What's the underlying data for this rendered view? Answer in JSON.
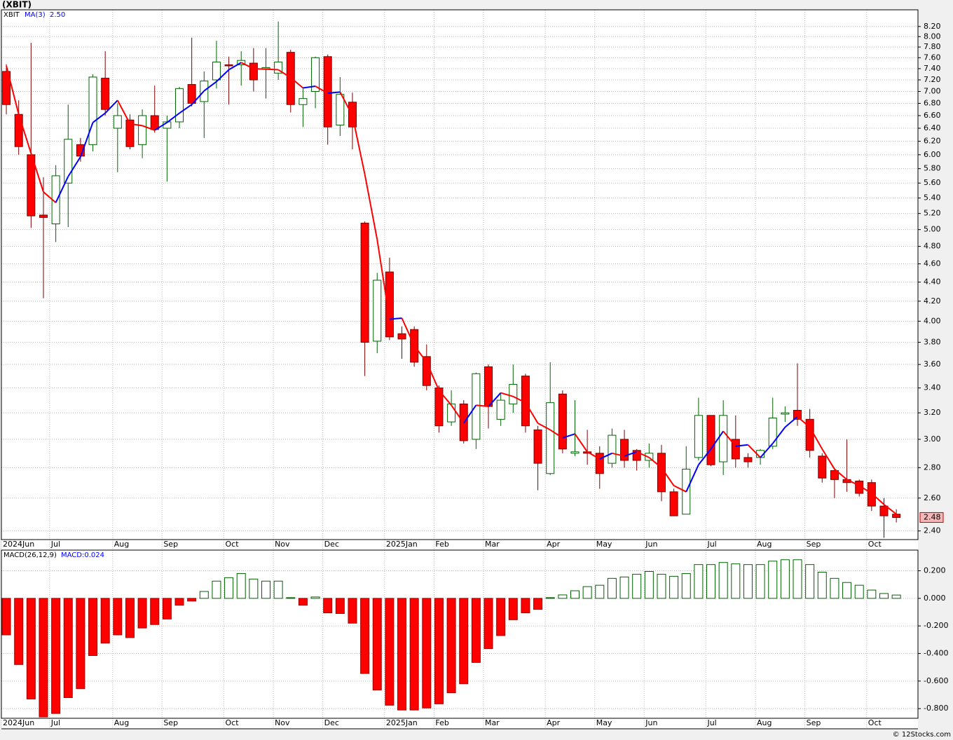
{
  "title": "(XBIT)",
  "credit": "© 12Stocks.com",
  "chart_data": [
    {
      "type": "candlestick",
      "log_scale": true,
      "grid": true,
      "ylim": [
        2.35,
        8.54
      ],
      "xlim": [
        -0.4,
        73.75
      ],
      "yticks": [
        {
          "value": 2.4,
          "label": "2.40"
        },
        {
          "value": 2.6,
          "label": "2.60"
        },
        {
          "value": 2.8,
          "label": "2.80"
        },
        {
          "value": 3,
          "label": "3.00"
        },
        {
          "value": 3.2,
          "label": "3.20"
        },
        {
          "value": 3.4,
          "label": "3.40"
        },
        {
          "value": 3.6,
          "label": "3.60"
        },
        {
          "value": 3.8,
          "label": "3.80"
        },
        {
          "value": 4,
          "label": "4.00"
        },
        {
          "value": 4.2,
          "label": "4.20"
        },
        {
          "value": 4.4,
          "label": "4.40"
        },
        {
          "value": 4.6,
          "label": "4.60"
        },
        {
          "value": 4.8,
          "label": "4.80"
        },
        {
          "value": 5,
          "label": "5.00"
        },
        {
          "value": 5.2,
          "label": "5.20"
        },
        {
          "value": 5.4,
          "label": "5.40"
        },
        {
          "value": 5.6,
          "label": "5.60"
        },
        {
          "value": 5.8,
          "label": "5.80"
        },
        {
          "value": 6,
          "label": "6.00"
        },
        {
          "value": 6.2,
          "label": "6.20"
        },
        {
          "value": 6.4,
          "label": "6.40"
        },
        {
          "value": 6.6,
          "label": "6.60"
        },
        {
          "value": 6.8,
          "label": "6.80"
        },
        {
          "value": 7,
          "label": "7.00"
        },
        {
          "value": 7.2,
          "label": "7.20"
        },
        {
          "value": 7.4,
          "label": "7.40"
        },
        {
          "value": 7.6,
          "label": "7.60"
        },
        {
          "value": 7.8,
          "label": "7.80"
        },
        {
          "value": 8,
          "label": "8.00"
        },
        {
          "value": 8.2,
          "label": "8.20"
        }
      ],
      "xticks": [
        {
          "value": -0.4,
          "label": "2024Jun"
        },
        {
          "value": 3.5,
          "label": "Jul"
        },
        {
          "value": 8.6,
          "label": "Aug"
        },
        {
          "value": 12.6,
          "label": "Sep"
        },
        {
          "value": 17.6,
          "label": "Oct"
        },
        {
          "value": 21.6,
          "label": "Nov"
        },
        {
          "value": 25.6,
          "label": "Dec"
        },
        {
          "value": 30.6,
          "label": "2025Jan"
        },
        {
          "value": 34.6,
          "label": "Feb"
        },
        {
          "value": 38.6,
          "label": "Mar"
        },
        {
          "value": 43.6,
          "label": "Apr"
        },
        {
          "value": 47.6,
          "label": "May"
        },
        {
          "value": 51.6,
          "label": "Jun"
        },
        {
          "value": 56.6,
          "label": "Jul"
        },
        {
          "value": 60.6,
          "label": "Aug"
        },
        {
          "value": 64.6,
          "label": "Sep"
        },
        {
          "value": 69.6,
          "label": "Oct"
        }
      ],
      "series": [
        {
          "name": "XBIT",
          "up_color": "#006400",
          "down_color": "#ff0000",
          "open": [
            7.35,
            6.62,
            6.0,
            5.18,
            5.07,
            5.6,
            6.15,
            6.15,
            7.23,
            6.4,
            6.53,
            6.15,
            6.6,
            6.4,
            6.5,
            7.12,
            6.83,
            7.2,
            7.47,
            7.47,
            7.5,
            7.4,
            7.32,
            7.7,
            6.78,
            7.0,
            7.62,
            6.45,
            6.82,
            5.08,
            3.81,
            4.51,
            3.88,
            3.92,
            3.67,
            3.4,
            3.13,
            3.27,
            3.0,
            3.58,
            3.15,
            3.27,
            3.5,
            3.07,
            2.76,
            3.35,
            2.9,
            2.91,
            2.9,
            2.83,
            3.0,
            2.92,
            2.85,
            2.9,
            2.64,
            2.5,
            2.87,
            3.18,
            2.84,
            3.0,
            2.87,
            2.87,
            2.95,
            3.19,
            3.22,
            3.15,
            2.88,
            2.78,
            2.72,
            2.71,
            2.7,
            2.55,
            2.5
          ],
          "high": [
            7.48,
            6.85,
            7.88,
            5.68,
            5.85,
            6.78,
            6.25,
            7.3,
            7.72,
            6.8,
            6.62,
            6.7,
            7.1,
            6.6,
            7.08,
            7.98,
            7.35,
            7.92,
            7.62,
            7.72,
            7.78,
            7.78,
            8.3,
            7.75,
            7.05,
            7.62,
            7.66,
            7.25,
            6.98,
            5.1,
            4.5,
            4.67,
            3.95,
            3.95,
            3.78,
            3.42,
            3.38,
            3.3,
            3.53,
            3.6,
            3.35,
            3.6,
            3.52,
            3.1,
            3.62,
            3.38,
            3.3,
            3.07,
            2.95,
            3.08,
            3.07,
            2.93,
            2.97,
            2.96,
            2.66,
            2.95,
            3.32,
            3.18,
            3.3,
            3.18,
            2.9,
            2.93,
            3.32,
            3.25,
            3.61,
            3.23,
            2.9,
            2.8,
            3.0,
            2.72,
            2.72,
            2.6,
            2.53
          ],
          "low": [
            6.62,
            6.0,
            5.02,
            4.23,
            4.85,
            5.03,
            5.9,
            6.05,
            6.6,
            5.75,
            6.08,
            5.95,
            6.33,
            5.62,
            6.4,
            6.75,
            6.25,
            7.05,
            6.78,
            7.1,
            7.0,
            6.88,
            7.2,
            6.65,
            6.42,
            6.72,
            6.15,
            6.28,
            6.08,
            3.5,
            3.7,
            3.82,
            3.65,
            3.58,
            3.38,
            3.05,
            3.1,
            2.97,
            2.93,
            3.08,
            3.1,
            3.2,
            3.05,
            2.65,
            2.75,
            2.9,
            2.88,
            2.82,
            2.66,
            2.8,
            2.8,
            2.78,
            2.8,
            2.58,
            2.49,
            2.5,
            2.85,
            2.81,
            2.75,
            2.8,
            2.8,
            2.82,
            2.93,
            3.13,
            3.1,
            2.87,
            2.7,
            2.6,
            2.64,
            2.61,
            2.52,
            2.36,
            2.45
          ],
          "close": [
            6.78,
            6.12,
            5.17,
            5.15,
            5.7,
            6.23,
            5.98,
            7.25,
            6.7,
            6.6,
            6.12,
            6.6,
            6.38,
            6.5,
            7.05,
            6.8,
            7.18,
            7.52,
            7.45,
            7.55,
            7.2,
            7.42,
            7.52,
            6.78,
            6.88,
            7.6,
            6.42,
            6.95,
            6.42,
            3.8,
            4.42,
            3.85,
            3.83,
            3.62,
            3.42,
            3.1,
            3.27,
            2.99,
            3.52,
            3.25,
            3.3,
            3.43,
            3.1,
            2.83,
            3.28,
            2.93,
            2.91,
            2.9,
            2.76,
            3.03,
            2.85,
            2.85,
            2.9,
            2.64,
            2.49,
            2.79,
            3.18,
            2.82,
            3.18,
            2.86,
            2.84,
            2.92,
            3.16,
            3.2,
            3.15,
            2.92,
            2.73,
            2.72,
            2.7,
            2.63,
            2.55,
            2.49,
            2.48
          ]
        },
        {
          "name": "MA(3)",
          "last_label": "2.50",
          "up_color": "#0000ff",
          "down_color": "#ff0000",
          "values": [
            7.45,
            6.62,
            6.02,
            5.48,
            5.34,
            5.69,
            5.97,
            6.49,
            6.64,
            6.85,
            6.47,
            6.44,
            6.37,
            6.49,
            6.64,
            6.78,
            7.01,
            7.17,
            7.38,
            7.51,
            7.4,
            7.39,
            7.38,
            7.24,
            7.06,
            7.09,
            6.97,
            6.99,
            6.6,
            5.72,
            4.88,
            4.02,
            4.03,
            3.77,
            3.62,
            3.38,
            3.26,
            3.12,
            3.26,
            3.25,
            3.36,
            3.33,
            3.28,
            3.12,
            3.07,
            3.01,
            3.04,
            2.91,
            2.86,
            2.9,
            2.88,
            2.91,
            2.87,
            2.8,
            2.68,
            2.64,
            2.82,
            2.93,
            3.06,
            2.95,
            2.96,
            2.87,
            2.97,
            3.09,
            3.17,
            3.09,
            2.93,
            2.79,
            2.72,
            2.68,
            2.63,
            2.56,
            2.5
          ]
        }
      ]
    },
    {
      "type": "bar",
      "grid": true,
      "ylim": [
        -0.87,
        0.35
      ],
      "xlim": [
        -0.4,
        73.75
      ],
      "yticks": [
        {
          "value": 0.2,
          "label": "0.200"
        },
        {
          "value": 0,
          "label": "0.000"
        },
        {
          "value": -0.2,
          "label": "-0.200"
        },
        {
          "value": -0.4,
          "label": "-0.400"
        },
        {
          "value": -0.6,
          "label": "-0.600"
        },
        {
          "value": -0.8,
          "label": "-0.800"
        }
      ],
      "xticks": [
        {
          "value": -0.4,
          "label": "2024Jun"
        },
        {
          "value": 3.5,
          "label": "Jul"
        },
        {
          "value": 8.6,
          "label": "Aug"
        },
        {
          "value": 12.6,
          "label": "Sep"
        },
        {
          "value": 17.6,
          "label": "Oct"
        },
        {
          "value": 21.6,
          "label": "Nov"
        },
        {
          "value": 25.6,
          "label": "Dec"
        },
        {
          "value": 30.6,
          "label": "2025Jan"
        },
        {
          "value": 34.6,
          "label": "Feb"
        },
        {
          "value": 38.6,
          "label": "Mar"
        },
        {
          "value": 43.6,
          "label": "Apr"
        },
        {
          "value": 47.6,
          "label": "May"
        },
        {
          "value": 51.6,
          "label": "Jun"
        },
        {
          "value": 56.6,
          "label": "Jul"
        },
        {
          "value": 60.6,
          "label": "Aug"
        },
        {
          "value": 64.6,
          "label": "Sep"
        },
        {
          "value": 69.6,
          "label": "Oct"
        }
      ],
      "series": [
        {
          "name": "MACD(26,12,9)",
          "last_label": "MACD:0.024",
          "up_color": "#006400",
          "down_color": "#ff0000",
          "values": [
            -0.265,
            -0.48,
            -0.73,
            -0.86,
            -0.835,
            -0.72,
            -0.655,
            -0.415,
            -0.325,
            -0.265,
            -0.285,
            -0.215,
            -0.19,
            -0.15,
            -0.05,
            -0.02,
            0.05,
            0.125,
            0.15,
            0.18,
            0.14,
            0.125,
            0.125,
            0.005,
            -0.05,
            0.01,
            -0.105,
            -0.11,
            -0.18,
            -0.545,
            -0.665,
            -0.775,
            -0.81,
            -0.81,
            -0.795,
            -0.765,
            -0.685,
            -0.62,
            -0.465,
            -0.365,
            -0.27,
            -0.155,
            -0.105,
            -0.08,
            0.005,
            0.025,
            0.055,
            0.085,
            0.095,
            0.145,
            0.155,
            0.175,
            0.195,
            0.175,
            0.16,
            0.18,
            0.245,
            0.245,
            0.26,
            0.25,
            0.245,
            0.245,
            0.27,
            0.28,
            0.28,
            0.245,
            0.19,
            0.145,
            0.115,
            0.095,
            0.06,
            0.035,
            0.024
          ]
        }
      ]
    }
  ]
}
